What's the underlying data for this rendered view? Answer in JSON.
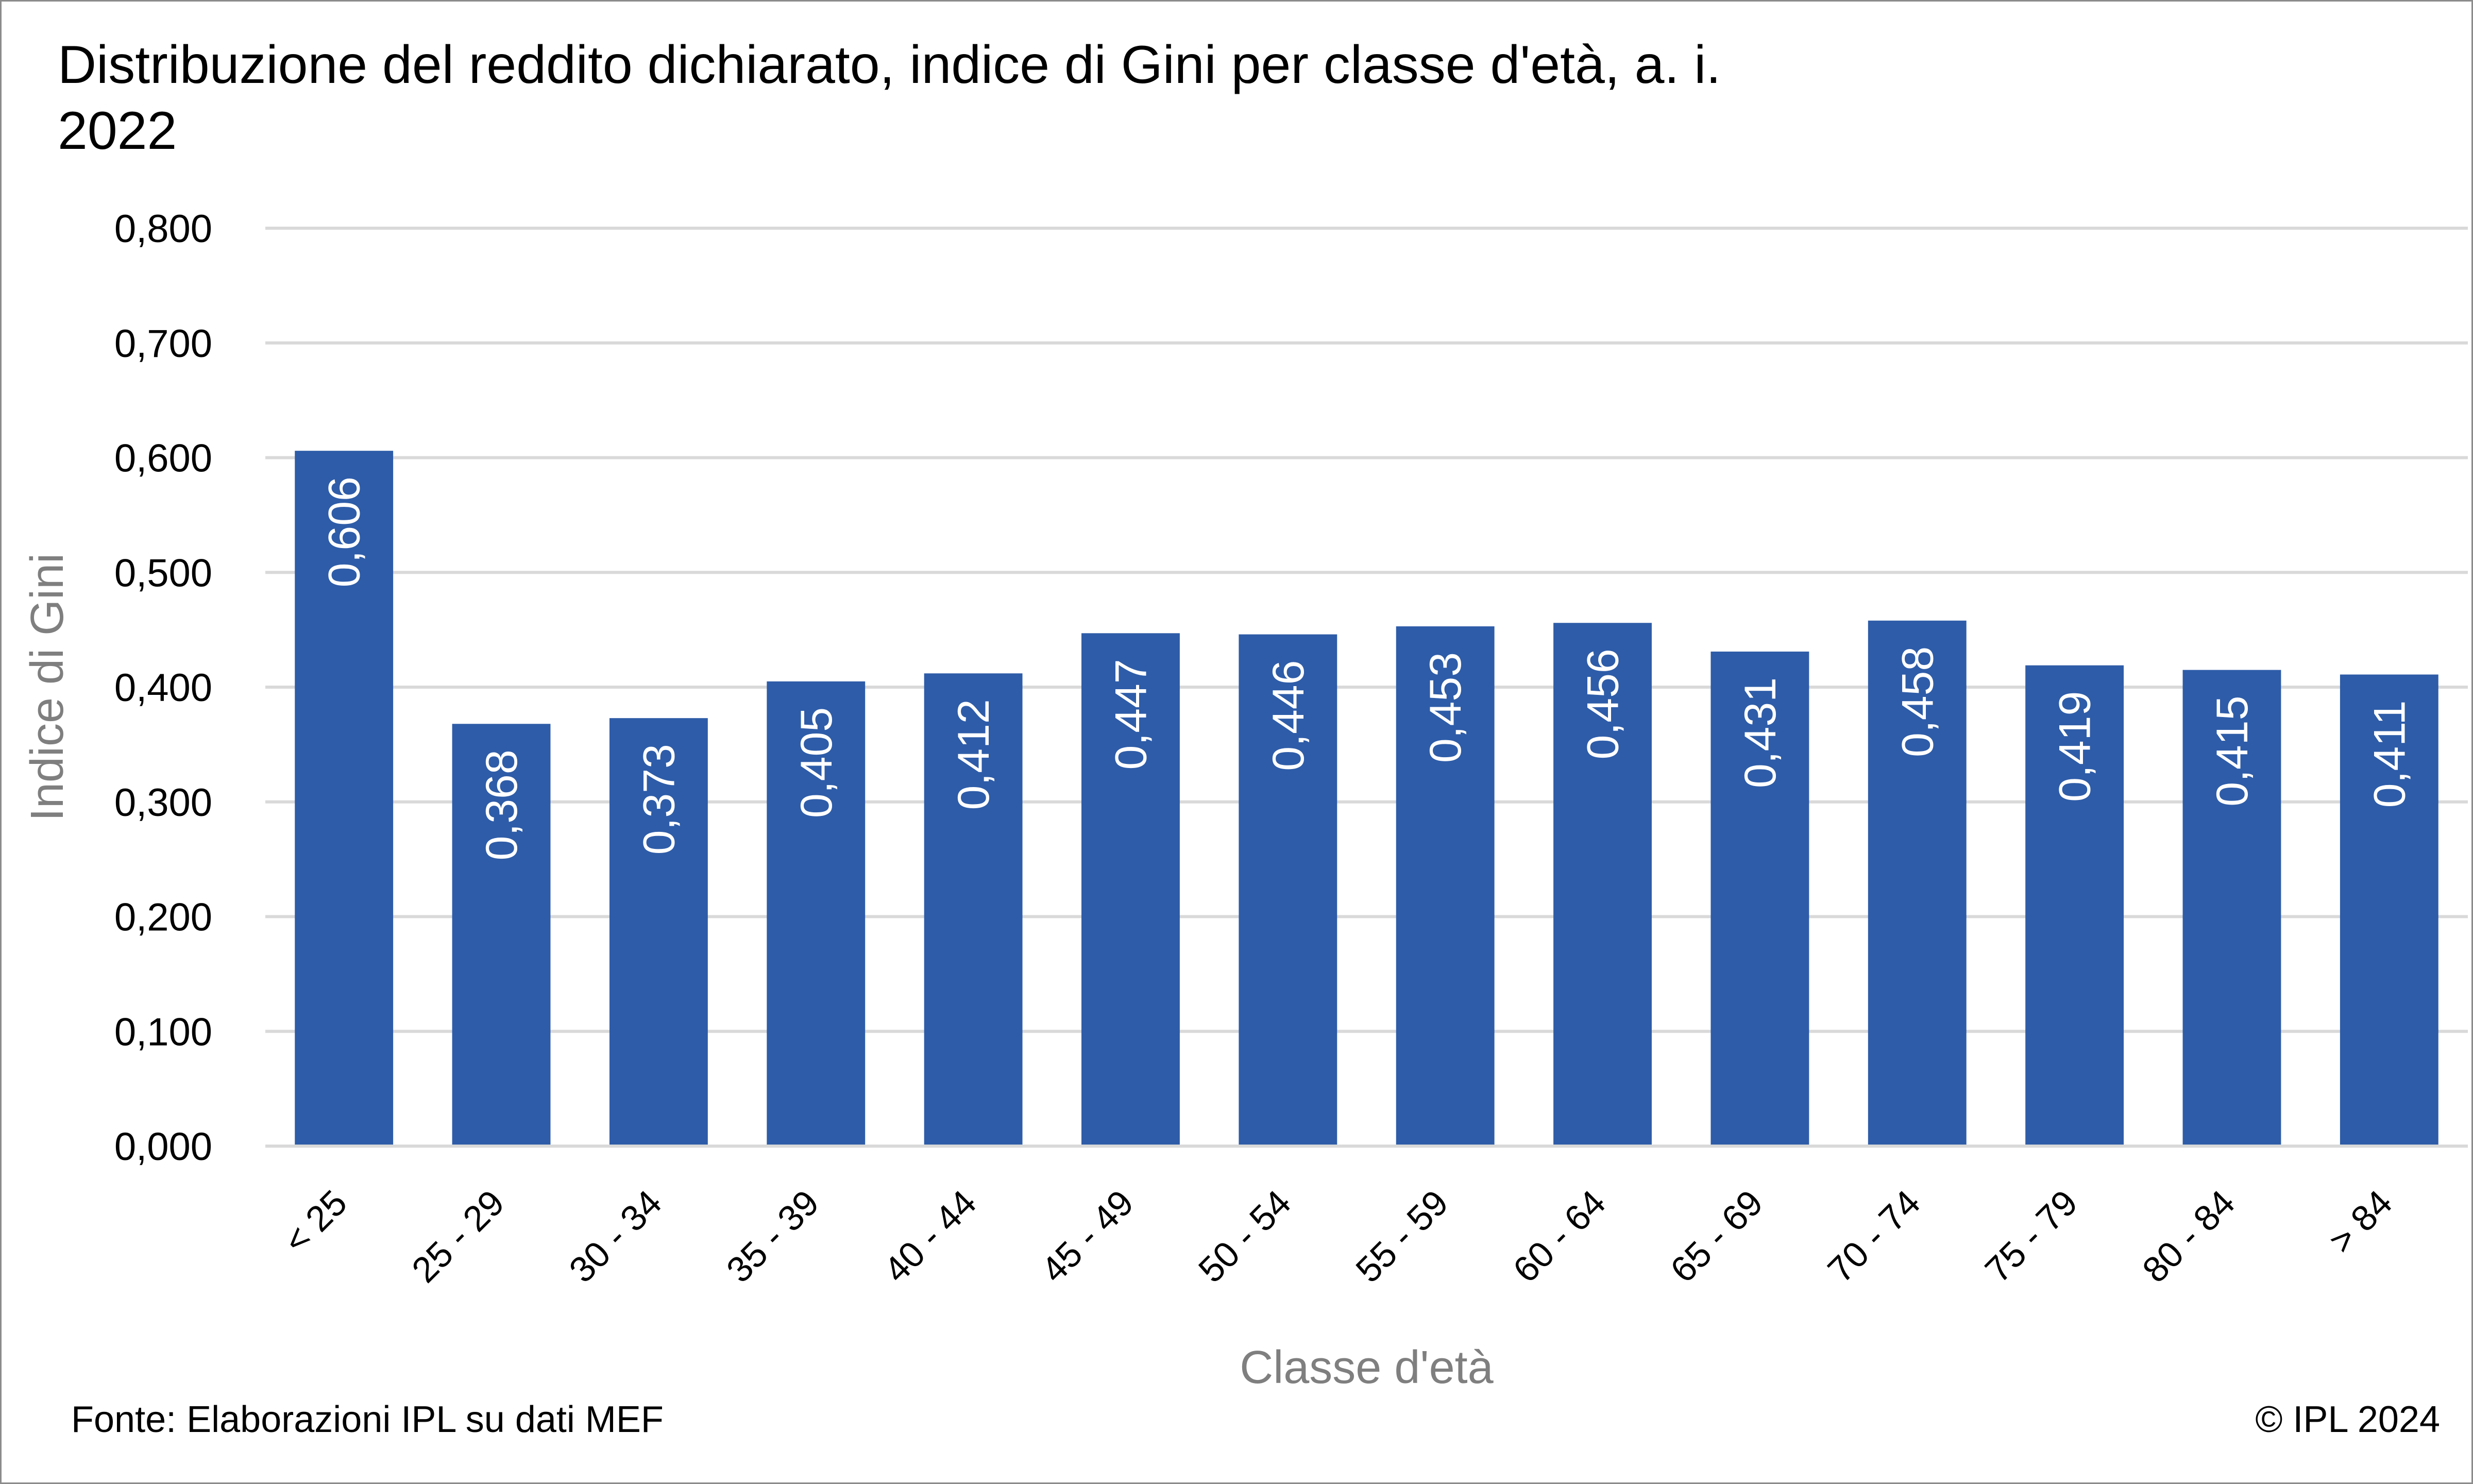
{
  "chart_data": {
    "type": "bar",
    "title_line1": "Distribuzione del reddito dichiarato, indice di Gini per classe d'età, a. i.",
    "title_line2": "2022",
    "xlabel": "Classe d'età",
    "ylabel": "Indice di Gini",
    "ylim": [
      0,
      0.8
    ],
    "ytick_values": [
      0,
      0.1,
      0.2,
      0.3,
      0.4,
      0.5,
      0.6,
      0.7,
      0.8
    ],
    "ytick_labels": [
      "0,000",
      "0,100",
      "0,200",
      "0,300",
      "0,400",
      "0,500",
      "0,600",
      "0,700",
      "0,800"
    ],
    "categories": [
      "< 25",
      "25 - 29",
      "30 - 34",
      "35 - 39",
      "40 - 44",
      "45 - 49",
      "50 - 54",
      "55 - 59",
      "60 - 64",
      "65 - 69",
      "70 - 74",
      "75 - 79",
      "80 - 84",
      "> 84"
    ],
    "values": [
      0.606,
      0.368,
      0.373,
      0.405,
      0.412,
      0.447,
      0.446,
      0.453,
      0.456,
      0.431,
      0.458,
      0.419,
      0.415,
      0.411
    ],
    "data_labels": [
      "0,606",
      "0,368",
      "0,373",
      "0,405",
      "0,412",
      "0,447",
      "0,446",
      "0,453",
      "0,456",
      "0,431",
      "0,458",
      "0,419",
      "0,415",
      "0,411"
    ],
    "grid": true,
    "colors": {
      "bar": "#2e5ca8",
      "grid": "#d9d9d9",
      "axis_title": "#7f7f7f"
    }
  },
  "footer": {
    "source": "Fonte: Elaborazioni IPL su dati MEF",
    "copyright": "© IPL 2024"
  }
}
